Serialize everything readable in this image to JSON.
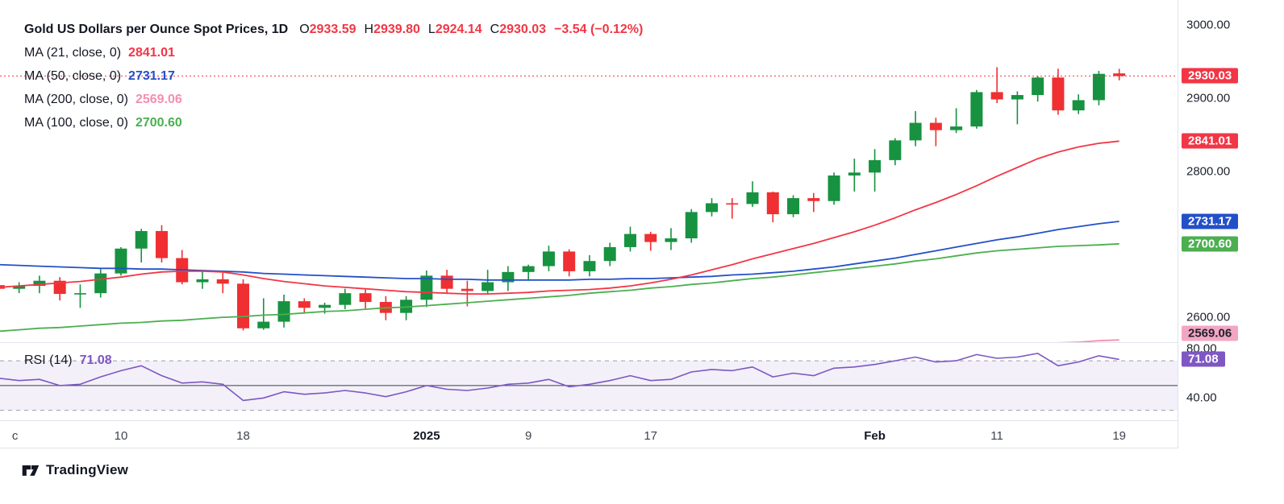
{
  "legend": {
    "title": "Gold US Dollars per Ounce Spot Prices, 1D",
    "ohlc": {
      "o_label": "O",
      "o": "2933.59",
      "h_label": "H",
      "h": "2939.80",
      "l_label": "L",
      "l": "2924.14",
      "c_label": "C",
      "c": "2930.03",
      "change": "−3.54 (−0.12%)"
    },
    "ma_rows": [
      {
        "label": "MA (21, close, 0)",
        "value": "2841.01",
        "color": "#f23645"
      },
      {
        "label": "MA (50, close, 0)",
        "value": "2731.17",
        "color": "#2350c8"
      },
      {
        "label": "MA (200, close, 0)",
        "value": "2569.06",
        "color": "#f48fb1"
      },
      {
        "label": "MA (100, close, 0)",
        "value": "2700.60",
        "color": "#4caf50"
      }
    ]
  },
  "rsi_legend": {
    "label": "RSI (14)",
    "value": "71.08"
  },
  "colors": {
    "up": "#179240",
    "down": "#ef2f31",
    "ohlc_values": "#f23645",
    "last_price_line": "#f23645",
    "rsi_band_fill": "rgba(126,87,194,0.09)",
    "rsi_band_line": "#9b9fae",
    "rsi_mid_line": "#3a3e4a",
    "separator": "#e0e3eb"
  },
  "axis": {
    "price_axis": {
      "labels": [
        {
          "text": "3000.00",
          "value": 3000
        },
        {
          "text": "2900.00",
          "value": 2900
        },
        {
          "text": "2800.00",
          "value": 2800
        },
        {
          "text": "2600.00",
          "value": 2600
        }
      ],
      "badges": [
        {
          "text": "2930.03",
          "value": 2930.03,
          "bg": "#f23645",
          "fg": "#ffffff",
          "pane": "main",
          "name": "last-price-badge"
        },
        {
          "text": "2841.01",
          "value": 2841.01,
          "bg": "#f23645",
          "fg": "#ffffff",
          "pane": "main",
          "name": "ma21-badge"
        },
        {
          "text": "2731.17",
          "value": 2731.17,
          "bg": "#2350c8",
          "fg": "#ffffff",
          "pane": "main",
          "name": "ma50-badge"
        },
        {
          "text": "2700.60",
          "value": 2700.6,
          "bg": "#4caf50",
          "fg": "#ffffff",
          "pane": "main",
          "name": "ma100-badge"
        },
        {
          "text": "2569.06",
          "value": 2569.06,
          "bg": "#f3a6c3",
          "fg": "#1e222d",
          "pane": "main",
          "name": "ma200-badge"
        },
        {
          "text": "71.08",
          "value": 71.08,
          "bg": "#7e57c2",
          "fg": "#ffffff",
          "pane": "rsi",
          "name": "rsi-badge"
        }
      ]
    },
    "rsi_axis": {
      "labels": [
        {
          "text": "80.00",
          "value": 80
        },
        {
          "text": "40.00",
          "value": 40
        }
      ]
    },
    "time_axis": {
      "labels": [
        {
          "text": "c",
          "i": 0.8,
          "bold": false
        },
        {
          "text": "10",
          "i": 6,
          "bold": false
        },
        {
          "text": "18",
          "i": 12,
          "bold": false
        },
        {
          "text": "2025",
          "i": 21,
          "bold": true
        },
        {
          "text": "9",
          "i": 26,
          "bold": false
        },
        {
          "text": "17",
          "i": 32,
          "bold": false
        },
        {
          "text": "Feb",
          "i": 43,
          "bold": true
        },
        {
          "text": "11",
          "i": 49,
          "bold": false
        },
        {
          "text": "19",
          "i": 55,
          "bold": false
        }
      ]
    }
  },
  "footer": {
    "brand": "TradingView"
  },
  "chart_data": {
    "type": "candlestick",
    "title": "Gold US Dollars per Ounce Spot Prices",
    "interval": "1D",
    "last_bar": {
      "open": 2933.59,
      "high": 2939.8,
      "low": 2924.14,
      "close": 2930.03,
      "change": -3.54,
      "change_pct": -0.12
    },
    "price_axis_range": [
      2566,
      3034
    ],
    "rsi_axis_range": [
      22,
      85
    ],
    "current_price_line": 2930.03,
    "columns": [
      "date",
      "open",
      "high",
      "low",
      "close"
    ],
    "candles": [
      [
        "2024-12-02",
        2644,
        2649,
        2622,
        2639
      ],
      [
        "2024-12-03",
        2639,
        2648,
        2633,
        2643
      ],
      [
        "2024-12-04",
        2643,
        2657,
        2633,
        2650
      ],
      [
        "2024-12-05",
        2650,
        2655,
        2623,
        2632
      ],
      [
        "2024-12-06",
        2632,
        2645,
        2613,
        2633
      ],
      [
        "2024-12-09",
        2633,
        2666,
        2627,
        2660
      ],
      [
        "2024-12-10",
        2660,
        2696,
        2657,
        2694
      ],
      [
        "2024-12-11",
        2694,
        2721,
        2675,
        2718
      ],
      [
        "2024-12-12",
        2718,
        2726,
        2675,
        2681
      ],
      [
        "2024-12-13",
        2681,
        2692,
        2645,
        2648
      ],
      [
        "2024-12-16",
        2648,
        2664,
        2639,
        2652
      ],
      [
        "2024-12-17",
        2652,
        2661,
        2633,
        2646
      ],
      [
        "2024-12-18",
        2646,
        2652,
        2582,
        2585
      ],
      [
        "2024-12-19",
        2585,
        2626,
        2583,
        2594
      ],
      [
        "2024-12-20",
        2594,
        2631,
        2586,
        2622
      ],
      [
        "2024-12-23",
        2622,
        2626,
        2605,
        2613
      ],
      [
        "2024-12-24",
        2613,
        2620,
        2605,
        2617
      ],
      [
        "2024-12-26",
        2617,
        2639,
        2611,
        2633
      ],
      [
        "2024-12-27",
        2633,
        2638,
        2612,
        2621
      ],
      [
        "2024-12-30",
        2621,
        2629,
        2596,
        2606
      ],
      [
        "2024-12-31",
        2606,
        2629,
        2596,
        2624
      ],
      [
        "2025-01-02",
        2624,
        2664,
        2614,
        2657
      ],
      [
        "2025-01-03",
        2657,
        2665,
        2632,
        2639
      ],
      [
        "2025-01-06",
        2639,
        2650,
        2615,
        2636
      ],
      [
        "2025-01-07",
        2636,
        2665,
        2632,
        2648
      ],
      [
        "2025-01-08",
        2648,
        2670,
        2636,
        2662
      ],
      [
        "2025-01-09",
        2662,
        2672,
        2650,
        2670
      ],
      [
        "2025-01-10",
        2670,
        2698,
        2663,
        2690
      ],
      [
        "2025-01-13",
        2690,
        2693,
        2656,
        2663
      ],
      [
        "2025-01-14",
        2663,
        2685,
        2656,
        2677
      ],
      [
        "2025-01-15",
        2677,
        2702,
        2670,
        2696
      ],
      [
        "2025-01-16",
        2696,
        2724,
        2690,
        2714
      ],
      [
        "2025-01-17",
        2714,
        2717,
        2691,
        2703
      ],
      [
        "2025-01-20",
        2703,
        2722,
        2692,
        2708
      ],
      [
        "2025-01-21",
        2708,
        2748,
        2702,
        2744
      ],
      [
        "2025-01-22",
        2744,
        2763,
        2738,
        2756
      ],
      [
        "2025-01-23",
        2756,
        2763,
        2735,
        2755
      ],
      [
        "2025-01-24",
        2755,
        2786,
        2751,
        2771
      ],
      [
        "2025-01-27",
        2771,
        2772,
        2730,
        2741
      ],
      [
        "2025-01-28",
        2741,
        2767,
        2737,
        2763
      ],
      [
        "2025-01-29",
        2763,
        2770,
        2744,
        2759
      ],
      [
        "2025-01-30",
        2759,
        2798,
        2754,
        2794
      ],
      [
        "2025-01-31",
        2794,
        2817,
        2772,
        2798
      ],
      [
        "2025-02-03",
        2798,
        2830,
        2772,
        2815
      ],
      [
        "2025-02-04",
        2815,
        2845,
        2808,
        2842
      ],
      [
        "2025-02-05",
        2842,
        2882,
        2834,
        2866
      ],
      [
        "2025-02-06",
        2866,
        2873,
        2834,
        2856
      ],
      [
        "2025-02-07",
        2856,
        2886,
        2852,
        2861
      ],
      [
        "2025-02-10",
        2861,
        2911,
        2858,
        2908
      ],
      [
        "2025-02-11",
        2908,
        2942,
        2893,
        2898
      ],
      [
        "2025-02-12",
        2898,
        2909,
        2864,
        2904
      ],
      [
        "2025-02-13",
        2904,
        2930,
        2895,
        2928
      ],
      [
        "2025-02-14",
        2928,
        2940,
        2877,
        2883
      ],
      [
        "2025-02-17",
        2883,
        2905,
        2878,
        2897
      ],
      [
        "2025-02-18",
        2897,
        2937,
        2890,
        2933
      ],
      [
        "2025-02-19",
        2933.59,
        2939.8,
        2924.14,
        2930.03
      ]
    ],
    "overlays": [
      {
        "key": "ma200",
        "name": "MA 200",
        "color": "#f48fb1",
        "last": 2569.06,
        "values": [
          2512,
          2513,
          2514,
          2515,
          2516,
          2517,
          2518,
          2519,
          2520,
          2521,
          2522,
          2523,
          2524,
          2525,
          2526,
          2527,
          2528,
          2529,
          2530,
          2531,
          2532,
          2533,
          2534,
          2535,
          2536,
          2537,
          2538,
          2539,
          2540,
          2541,
          2542,
          2543,
          2544,
          2545,
          2546,
          2547,
          2548,
          2549,
          2550,
          2551,
          2552,
          2553,
          2554,
          2555,
          2556,
          2557,
          2558,
          2559,
          2560,
          2561,
          2562,
          2563,
          2565,
          2566,
          2568,
          2569.06
        ]
      },
      {
        "key": "ma100",
        "name": "MA 100",
        "color": "#4caf50",
        "last": 2700.6,
        "values": [
          2581,
          2583,
          2585,
          2586,
          2588,
          2590,
          2592,
          2593,
          2595,
          2596,
          2598,
          2600,
          2601,
          2603,
          2604,
          2606,
          2608,
          2609,
          2611,
          2613,
          2614,
          2616,
          2618,
          2620,
          2622,
          2624,
          2626,
          2628,
          2630,
          2633,
          2635,
          2637,
          2640,
          2642,
          2645,
          2647,
          2650,
          2653,
          2655,
          2658,
          2661,
          2664,
          2667,
          2670,
          2673,
          2677,
          2680,
          2684,
          2688,
          2691,
          2693,
          2695,
          2697,
          2698,
          2699,
          2700.6
        ]
      },
      {
        "key": "ma50",
        "name": "MA 50",
        "color": "#2350c8",
        "last": 2731.17,
        "values": [
          2672,
          2671,
          2670,
          2669,
          2668,
          2667,
          2667,
          2666,
          2666,
          2665,
          2664,
          2663,
          2662,
          2660,
          2659,
          2658,
          2657,
          2656,
          2655,
          2654,
          2653,
          2653,
          2652,
          2652,
          2651,
          2651,
          2651,
          2651,
          2651,
          2652,
          2652,
          2653,
          2653,
          2654,
          2655,
          2656,
          2658,
          2659,
          2661,
          2663,
          2666,
          2669,
          2673,
          2677,
          2681,
          2686,
          2691,
          2696,
          2701,
          2706,
          2710,
          2715,
          2720,
          2724,
          2728,
          2731.17
        ]
      },
      {
        "key": "ma21",
        "name": "MA 21",
        "color": "#f23645",
        "last": 2841.01,
        "values": [
          2641,
          2643,
          2645,
          2647,
          2649,
          2652,
          2655,
          2659,
          2662,
          2663,
          2663,
          2662,
          2658,
          2653,
          2649,
          2646,
          2643,
          2641,
          2639,
          2637,
          2635,
          2634,
          2633,
          2632,
          2632,
          2633,
          2634,
          2636,
          2637,
          2638,
          2640,
          2643,
          2647,
          2652,
          2658,
          2665,
          2672,
          2680,
          2687,
          2694,
          2701,
          2709,
          2717,
          2726,
          2736,
          2747,
          2757,
          2768,
          2780,
          2793,
          2805,
          2817,
          2826,
          2833,
          2838,
          2841.01
        ]
      }
    ],
    "rsi": {
      "name": "RSI 14",
      "period": 14,
      "color": "#7e57c2",
      "last": 71.08,
      "bands": [
        70,
        50,
        30
      ],
      "values": [
        56,
        54,
        55,
        50,
        51,
        57,
        62,
        66,
        58,
        52,
        53,
        51,
        38,
        40,
        45,
        43,
        44,
        46,
        44,
        41,
        45,
        50,
        47,
        46,
        48,
        51,
        52,
        55,
        49,
        51,
        54,
        58,
        54,
        55,
        61,
        63,
        62,
        65,
        57,
        60,
        58,
        64,
        65,
        67,
        70,
        73,
        69,
        70,
        75,
        72,
        73,
        76,
        66,
        69,
        74,
        71.08
      ]
    }
  }
}
